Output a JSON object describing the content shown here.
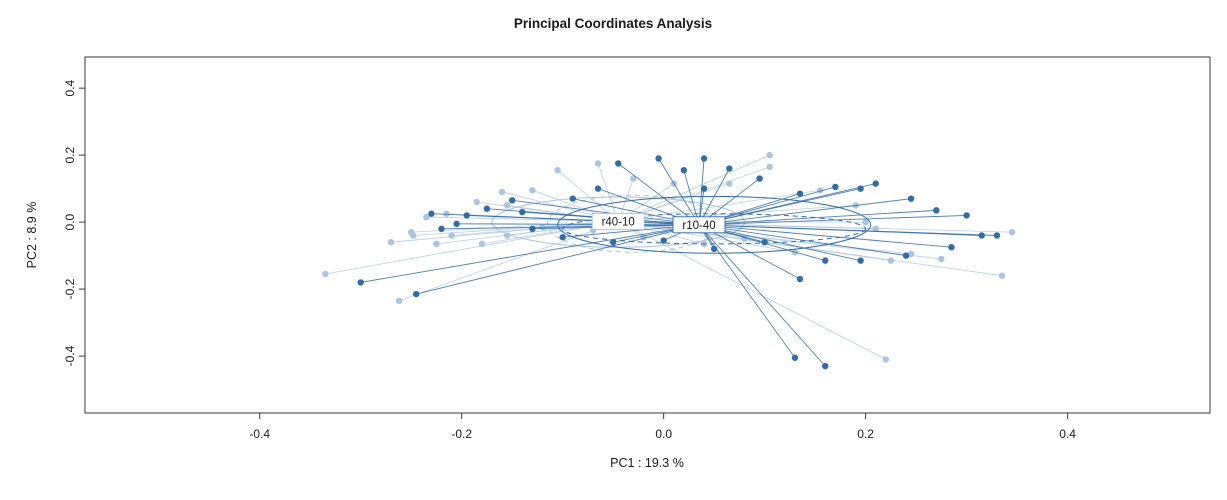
{
  "chart_data": {
    "type": "scatter",
    "title": "Principal Coordinates Analysis",
    "xlabel": "PC1 :  19.3 %",
    "ylabel": "PC2 :  8.9 %",
    "xlim": [
      -0.573,
      0.541
    ],
    "ylim": [
      -0.57,
      0.493
    ],
    "xticks": [
      -0.4,
      -0.2,
      0.0,
      0.2,
      0.4
    ],
    "yticks": [
      -0.4,
      -0.2,
      0.0,
      0.2,
      0.4
    ],
    "xtick_labels": [
      "-0.4",
      "-0.2",
      "0.0",
      "0.2",
      "0.4"
    ],
    "ytick_labels": [
      "-0.4",
      "-0.2",
      "0.0",
      "0.2",
      "0.4"
    ],
    "grid": false,
    "legend": "none",
    "groups": [
      {
        "name": "r40-10",
        "color": "#a9c5e2",
        "line_width": 0.8,
        "line_opacity": 0.8,
        "centroid": [
          -0.045,
          0.002
        ],
        "ellipses": [
          {
            "cx": -0.045,
            "cy": 0.0,
            "rx": 0.125,
            "ry": 0.075,
            "style": "solid"
          },
          {
            "cx": -0.03,
            "cy": -0.005,
            "rx": 0.085,
            "ry": 0.085,
            "style": "dashed"
          }
        ],
        "points": [
          [
            -0.335,
            -0.155
          ],
          [
            -0.262,
            -0.235
          ],
          [
            -0.27,
            -0.06
          ],
          [
            -0.248,
            -0.04
          ],
          [
            -0.225,
            -0.065
          ],
          [
            -0.21,
            -0.04
          ],
          [
            -0.235,
            0.015
          ],
          [
            -0.215,
            0.025
          ],
          [
            -0.185,
            0.06
          ],
          [
            -0.16,
            0.09
          ],
          [
            -0.155,
            0.05
          ],
          [
            -0.13,
            0.095
          ],
          [
            -0.105,
            0.155
          ],
          [
            -0.065,
            0.175
          ],
          [
            -0.03,
            0.13
          ],
          [
            0.01,
            0.115
          ],
          [
            0.065,
            0.115
          ],
          [
            0.105,
            0.165
          ],
          [
            0.105,
            0.2
          ],
          [
            0.155,
            0.095
          ],
          [
            0.19,
            0.05
          ],
          [
            0.2,
            0.0
          ],
          [
            0.21,
            -0.02
          ],
          [
            0.225,
            -0.115
          ],
          [
            0.245,
            -0.095
          ],
          [
            0.275,
            -0.11
          ],
          [
            0.335,
            -0.16
          ],
          [
            0.345,
            -0.03
          ],
          [
            0.22,
            -0.41
          ],
          [
            0.13,
            -0.09
          ],
          [
            0.08,
            -0.05
          ],
          [
            0.04,
            -0.065
          ],
          [
            -0.02,
            -0.045
          ],
          [
            -0.07,
            -0.025
          ],
          [
            -0.12,
            -0.015
          ],
          [
            -0.155,
            -0.04
          ],
          [
            -0.18,
            -0.065
          ],
          [
            -0.25,
            -0.03
          ]
        ]
      },
      {
        "name": "r10-40",
        "color": "#2e6da8",
        "line_width": 0.9,
        "line_opacity": 0.85,
        "centroid": [
          0.035,
          -0.008
        ],
        "ellipses": [
          {
            "cx": 0.05,
            "cy": -0.008,
            "rx": 0.155,
            "ry": 0.085,
            "style": "solid"
          },
          {
            "cx": 0.05,
            "cy": -0.02,
            "rx": 0.15,
            "ry": 0.045,
            "style": "dashed"
          }
        ],
        "points": [
          [
            -0.3,
            -0.18
          ],
          [
            -0.245,
            -0.215
          ],
          [
            -0.22,
            -0.02
          ],
          [
            -0.205,
            -0.005
          ],
          [
            -0.23,
            0.025
          ],
          [
            -0.195,
            0.02
          ],
          [
            -0.175,
            0.04
          ],
          [
            -0.15,
            0.065
          ],
          [
            -0.14,
            0.03
          ],
          [
            -0.09,
            0.07
          ],
          [
            -0.065,
            0.1
          ],
          [
            -0.045,
            0.175
          ],
          [
            -0.005,
            0.19
          ],
          [
            0.02,
            0.155
          ],
          [
            0.04,
            0.19
          ],
          [
            0.065,
            0.16
          ],
          [
            0.04,
            0.1
          ],
          [
            0.095,
            0.13
          ],
          [
            0.135,
            0.085
          ],
          [
            0.17,
            0.105
          ],
          [
            0.195,
            0.1
          ],
          [
            0.21,
            0.115
          ],
          [
            0.245,
            0.07
          ],
          [
            0.27,
            0.035
          ],
          [
            0.3,
            0.02
          ],
          [
            0.315,
            -0.04
          ],
          [
            0.33,
            -0.04
          ],
          [
            0.285,
            -0.075
          ],
          [
            0.24,
            -0.1
          ],
          [
            0.195,
            -0.115
          ],
          [
            0.16,
            -0.115
          ],
          [
            0.135,
            -0.17
          ],
          [
            0.13,
            -0.405
          ],
          [
            0.16,
            -0.43
          ],
          [
            0.1,
            -0.06
          ],
          [
            0.05,
            -0.08
          ],
          [
            0.0,
            -0.055
          ],
          [
            -0.05,
            -0.06
          ],
          [
            -0.1,
            -0.045
          ],
          [
            -0.13,
            -0.02
          ]
        ]
      }
    ]
  }
}
